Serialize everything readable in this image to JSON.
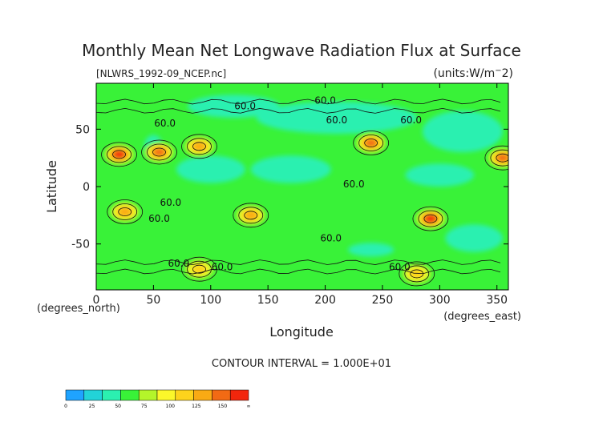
{
  "chart_data": {
    "type": "heatmap",
    "title": "Monthly Mean Net Longwave Radiation Flux at Surface",
    "source_label": "[NLWRS_1992-09_NCEP.nc]",
    "units_label": "(units:W/m^2)",
    "xlabel": "Longitude",
    "ylabel": "Latitude",
    "x_unit_label": "(degrees_east)",
    "y_unit_label": "(degrees_north)",
    "xlim": [
      0,
      360
    ],
    "ylim": [
      -90,
      90
    ],
    "x_ticks": [
      0,
      50,
      100,
      150,
      200,
      250,
      300,
      350
    ],
    "y_ticks": [
      50,
      0,
      -50
    ],
    "contour_interval_label": "CONTOUR INTERVAL = 1.000E+01",
    "colorbar": {
      "levels": [
        "0",
        "25",
        "50",
        "75",
        "100",
        "125",
        "150",
        "∞"
      ],
      "colors": [
        "#1fa3ff",
        "#22d3d8",
        "#2bf0b0",
        "#39f238",
        "#b4f52a",
        "#fbf72a",
        "#fdd31c",
        "#f9aa14",
        "#f26a14",
        "#f2260c"
      ]
    },
    "contour_labels": [
      {
        "text": "60.0",
        "lon": 60,
        "lat": 55
      },
      {
        "text": "60.0",
        "lon": 130,
        "lat": 70
      },
      {
        "text": "60.0",
        "lon": 200,
        "lat": 75
      },
      {
        "text": "60.0",
        "lon": 210,
        "lat": 58
      },
      {
        "text": "60.0",
        "lon": 275,
        "lat": 58
      },
      {
        "text": "60.0",
        "lon": 65,
        "lat": -14
      },
      {
        "text": "60.0",
        "lon": 55,
        "lat": -28
      },
      {
        "text": "60.0",
        "lon": 225,
        "lat": 2
      },
      {
        "text": "60.0",
        "lon": 205,
        "lat": -45
      },
      {
        "text": "60.0",
        "lon": 72,
        "lat": -67
      },
      {
        "text": "60.0",
        "lon": 110,
        "lat": -70
      },
      {
        "text": "60.0",
        "lon": 265,
        "lat": -70
      }
    ],
    "hotspots": [
      {
        "lon": 20,
        "lat": 28,
        "level": 9
      },
      {
        "lon": 55,
        "lat": 30,
        "level": 8
      },
      {
        "lon": 90,
        "lat": 35,
        "level": 7
      },
      {
        "lon": 240,
        "lat": 38,
        "level": 8
      },
      {
        "lon": 355,
        "lat": 25,
        "level": 8
      },
      {
        "lon": 25,
        "lat": -22,
        "level": 7
      },
      {
        "lon": 135,
        "lat": -25,
        "level": 7
      },
      {
        "lon": 292,
        "lat": -28,
        "level": 9
      },
      {
        "lon": 90,
        "lat": -72,
        "level": 6
      },
      {
        "lon": 280,
        "lat": -76,
        "level": 6
      }
    ],
    "cool_regions": [
      {
        "lon": 120,
        "lat": 70,
        "rx": 40,
        "ry": 10
      },
      {
        "lon": 210,
        "lat": 60,
        "rx": 70,
        "ry": 14
      },
      {
        "lon": 320,
        "lat": 48,
        "rx": 35,
        "ry": 18
      },
      {
        "lon": 100,
        "lat": 15,
        "rx": 30,
        "ry": 12
      },
      {
        "lon": 170,
        "lat": 15,
        "rx": 35,
        "ry": 12
      },
      {
        "lon": 300,
        "lat": 10,
        "rx": 30,
        "ry": 10
      },
      {
        "lon": 50,
        "lat": 35,
        "rx": 8,
        "ry": 10
      },
      {
        "lon": 240,
        "lat": -55,
        "rx": 20,
        "ry": 6
      },
      {
        "lon": 330,
        "lat": -45,
        "rx": 25,
        "ry": 12
      }
    ]
  }
}
